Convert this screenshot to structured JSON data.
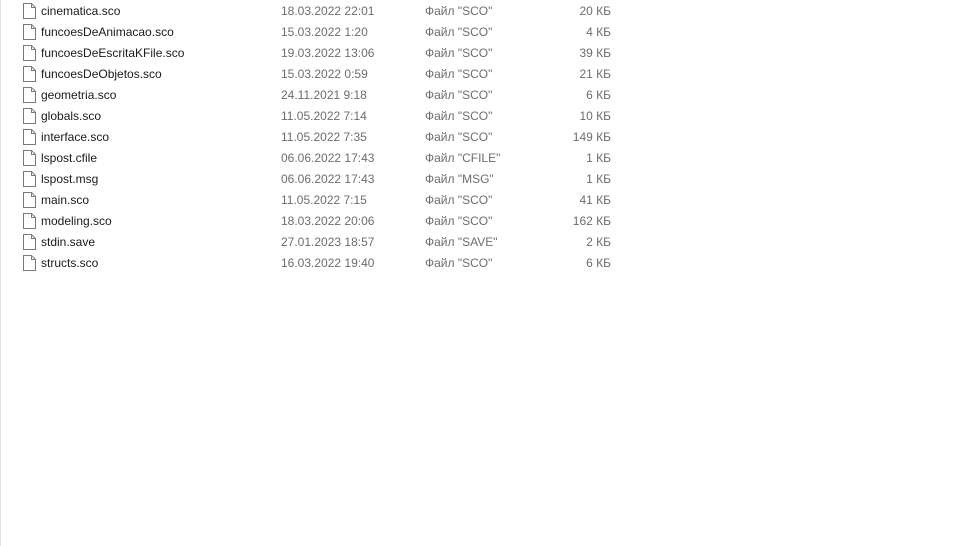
{
  "files": [
    {
      "name": "cinematica.sco",
      "date": "18.03.2022 22:01",
      "type": "Файл \"SCO\"",
      "size": "20 КБ",
      "icon": "file-icon"
    },
    {
      "name": "funcoesDeAnimacao.sco",
      "date": "15.03.2022 1:20",
      "type": "Файл \"SCO\"",
      "size": "4 КБ",
      "icon": "file-icon"
    },
    {
      "name": "funcoesDeEscritaKFile.sco",
      "date": "19.03.2022 13:06",
      "type": "Файл \"SCO\"",
      "size": "39 КБ",
      "icon": "file-icon"
    },
    {
      "name": "funcoesDeObjetos.sco",
      "date": "15.03.2022 0:59",
      "type": "Файл \"SCO\"",
      "size": "21 КБ",
      "icon": "file-icon"
    },
    {
      "name": "geometria.sco",
      "date": "24.11.2021 9:18",
      "type": "Файл \"SCO\"",
      "size": "6 КБ",
      "icon": "file-icon"
    },
    {
      "name": "globals.sco",
      "date": "11.05.2022 7:14",
      "type": "Файл \"SCO\"",
      "size": "10 КБ",
      "icon": "file-icon"
    },
    {
      "name": "interface.sco",
      "date": "11.05.2022 7:35",
      "type": "Файл \"SCO\"",
      "size": "149 КБ",
      "icon": "file-icon"
    },
    {
      "name": "lspost.cfile",
      "date": "06.06.2022 17:43",
      "type": "Файл \"CFILE\"",
      "size": "1 КБ",
      "icon": "file-icon"
    },
    {
      "name": "lspost.msg",
      "date": "06.06.2022 17:43",
      "type": "Файл \"MSG\"",
      "size": "1 КБ",
      "icon": "file-icon"
    },
    {
      "name": "main.sco",
      "date": "11.05.2022 7:15",
      "type": "Файл \"SCO\"",
      "size": "41 КБ",
      "icon": "file-icon"
    },
    {
      "name": "modeling.sco",
      "date": "18.03.2022 20:06",
      "type": "Файл \"SCO\"",
      "size": "162 КБ",
      "icon": "file-icon"
    },
    {
      "name": "stdin.save",
      "date": "27.01.2023 18:57",
      "type": "Файл \"SAVE\"",
      "size": "2 КБ",
      "icon": "file-icon"
    },
    {
      "name": "structs.sco",
      "date": "16.03.2022 19:40",
      "type": "Файл \"SCO\"",
      "size": "6 КБ",
      "icon": "file-icon"
    }
  ]
}
